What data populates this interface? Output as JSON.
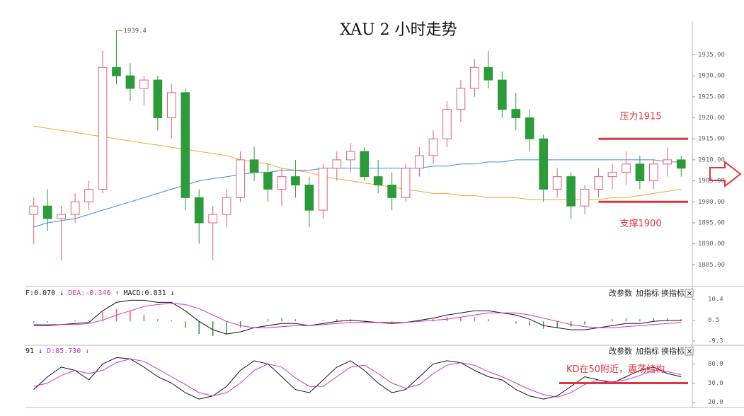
{
  "chart_data": [
    {
      "type": "candlestick",
      "title": "XAU 2 小时走势",
      "open": [
        1897,
        1899,
        1896,
        1897,
        1900,
        1903,
        1932,
        1930,
        1927,
        1929,
        1920,
        1926,
        1901,
        1895,
        1897,
        1901,
        1910,
        1907,
        1903,
        1906,
        1904,
        1898,
        1908,
        1910,
        1912,
        1906,
        1904,
        1901,
        1908,
        1911,
        1915,
        1922,
        1927,
        1932,
        1929,
        1922,
        1920,
        1915,
        1903,
        1906,
        1899,
        1903,
        1906,
        1907,
        1909,
        1905,
        1909,
        1910
      ],
      "high": [
        1901,
        1903,
        1899,
        1902,
        1905,
        1936,
        1939.4,
        1933,
        1930,
        1930,
        1928,
        1927,
        1903,
        1899,
        1903,
        1912,
        1913,
        1909,
        1908,
        1910,
        1906,
        1909,
        1912,
        1914,
        1913,
        1910,
        1907,
        1909,
        1913,
        1917,
        1924,
        1929,
        1934,
        1936,
        1931,
        1926,
        1922,
        1916,
        1908,
        1907,
        1904,
        1908,
        1909,
        1912,
        1911,
        1910,
        1913,
        1911
      ],
      "low": [
        1890,
        1893,
        1886,
        1895,
        1898,
        1902,
        1928,
        1924,
        1923,
        1917,
        1915,
        1898,
        1890,
        1886,
        1894,
        1900,
        1905,
        1900,
        1899,
        1901,
        1894,
        1896,
        1905,
        1907,
        1905,
        1902,
        1898,
        1900,
        1906,
        1909,
        1913,
        1919,
        1925,
        1927,
        1920,
        1917,
        1912,
        1900,
        1901,
        1896,
        1897,
        1901,
        1903,
        1904,
        1903,
        1903,
        1906,
        1906
      ],
      "close": [
        1899,
        1896,
        1897,
        1900,
        1903,
        1932,
        1930,
        1927,
        1929,
        1920,
        1926,
        1901,
        1895,
        1897,
        1901,
        1910,
        1907,
        1903,
        1906,
        1904,
        1898,
        1908,
        1910,
        1912,
        1906,
        1904,
        1901,
        1908,
        1911,
        1915,
        1922,
        1927,
        1932,
        1929,
        1922,
        1920,
        1915,
        1903,
        1906,
        1899,
        1903,
        1906,
        1907,
        1909,
        1905,
        1909,
        1910,
        1908
      ],
      "up_color": "#e0607a",
      "down_color": "#2e9a3c",
      "high_label": "1939.4",
      "moving_averages": [
        {
          "color": "#f0a830",
          "values": [
            1918,
            1917.5,
            1917,
            1916.5,
            1916,
            1915.5,
            1915,
            1914.5,
            1914,
            1913.5,
            1913,
            1912.5,
            1912,
            1911.5,
            1911,
            1910,
            1909.5,
            1909,
            1908,
            1907.5,
            1907,
            1906,
            1905.5,
            1905,
            1904.5,
            1904,
            1903.5,
            1903,
            1902.5,
            1902,
            1902,
            1901.5,
            1901.5,
            1901,
            1901,
            1901,
            1900.5,
            1900.5,
            1900.5,
            1900.5,
            1900.5,
            1900.5,
            1901,
            1901,
            1901.5,
            1902,
            1902.5,
            1903
          ]
        },
        {
          "color": "#3a8fd8",
          "values": [
            1894,
            1895,
            1895.5,
            1896,
            1897,
            1898,
            1899,
            1900,
            1901,
            1902,
            1903,
            1904,
            1905,
            1905.5,
            1906,
            1906.5,
            1907,
            1907,
            1907.5,
            1907.5,
            1907.5,
            1908,
            1908,
            1908,
            1908,
            1908,
            1908,
            1908,
            1908,
            1908.5,
            1908.5,
            1909,
            1909,
            1909.5,
            1909.5,
            1910,
            1910,
            1910,
            1910,
            1910,
            1910,
            1910,
            1910,
            1910,
            1910,
            1910,
            1909.5,
            1909.5
          ]
        }
      ],
      "levels": [
        {
          "label": "压力1915",
          "value": 1915,
          "color": "#e0353c"
        },
        {
          "label": "支撑1900",
          "value": 1900,
          "color": "#e0353c"
        }
      ],
      "ylim": [
        1880,
        1943
      ],
      "yticks": [
        {
          "value": 1885,
          "label": "1885.00"
        },
        {
          "value": 1890,
          "label": "1890.00"
        },
        {
          "value": 1895,
          "label": "1895.00"
        },
        {
          "value": 1900,
          "label": "1900.00"
        },
        {
          "value": 1905,
          "label": "1905.00"
        },
        {
          "value": 1910,
          "label": "1910.00"
        },
        {
          "value": 1915,
          "label": "1915.00"
        },
        {
          "value": 1920,
          "label": "1920.00"
        },
        {
          "value": 1925,
          "label": "1925.00"
        },
        {
          "value": 1930,
          "label": "1930.00"
        },
        {
          "value": 1935,
          "label": "1935.00"
        }
      ]
    },
    {
      "type": "macd",
      "header": [
        {
          "text": "F:0.070 ↓",
          "color": "#222"
        },
        {
          "text": "DEA:-0.346 ↑",
          "color": "#d030c8"
        },
        {
          "text": "MACD:0.831 ↓",
          "color": "#222"
        }
      ],
      "toolbar": [
        "改参数",
        "加指标",
        "换指标",
        "×"
      ],
      "series": [
        {
          "color": "#111",
          "values": [
            -2,
            -2,
            -1.5,
            -1,
            -0.5,
            5,
            9,
            10,
            10,
            9,
            9,
            5,
            0,
            -4,
            -6,
            -5,
            -3,
            -2,
            -1,
            -1,
            -2,
            -1,
            0,
            0.5,
            0,
            -0.5,
            -1,
            -0.5,
            0.5,
            1.5,
            3,
            4,
            5,
            5,
            4,
            3,
            1,
            -2,
            -3,
            -4,
            -4,
            -3,
            -2,
            -1,
            -1,
            0,
            0.5,
            0.5
          ]
        },
        {
          "color": "#d030c8",
          "values": [
            -1.5,
            -1.5,
            -1.5,
            -1.5,
            -1,
            0.5,
            3,
            5,
            7,
            8,
            8.5,
            8,
            6,
            3,
            0,
            -2,
            -3,
            -3,
            -2.5,
            -2,
            -2,
            -1.5,
            -1,
            -0.5,
            -0.5,
            -0.5,
            -0.5,
            -0.5,
            0,
            0.5,
            1,
            2,
            3,
            4,
            4,
            4,
            3,
            1.5,
            0,
            -1.5,
            -2.5,
            -3,
            -3,
            -2.5,
            -2,
            -1.5,
            -1,
            -0.5
          ]
        }
      ],
      "histogram": [
        -0.5,
        -0.5,
        0,
        0.5,
        0.5,
        4.5,
        6,
        5,
        3,
        1,
        0.5,
        -3,
        -6,
        -7,
        -6,
        -3,
        0,
        1,
        1.5,
        1,
        0,
        0.5,
        1,
        1,
        0.5,
        0,
        -0.5,
        0,
        0.5,
        1,
        2,
        2,
        2,
        1,
        0,
        -1,
        -2,
        -3.5,
        -3,
        -2.5,
        -1.5,
        0,
        1,
        1.5,
        1,
        1.5,
        1.5,
        1
      ],
      "up_color": "#e0607a",
      "down_color": "#2e9a3c",
      "ylim": [
        -11,
        15.5
      ],
      "yticks": [
        10.4,
        0.5,
        -9.3
      ]
    },
    {
      "type": "kd",
      "header": [
        {
          "text": "91 ↓",
          "color": "#222"
        },
        {
          "text": "D:85.730 ↓",
          "color": "#d030c8"
        }
      ],
      "toolbar": [
        "改参数",
        "加指标",
        "换指标",
        "×"
      ],
      "series": [
        {
          "color": "#111",
          "values": [
            40,
            60,
            75,
            70,
            55,
            80,
            90,
            88,
            75,
            60,
            50,
            35,
            25,
            30,
            45,
            70,
            85,
            80,
            60,
            40,
            35,
            55,
            75,
            85,
            70,
            50,
            35,
            40,
            60,
            80,
            85,
            82,
            70,
            60,
            55,
            40,
            30,
            25,
            30,
            45,
            60,
            55,
            50,
            60,
            70,
            75,
            65,
            60
          ]
        },
        {
          "color": "#d030c8",
          "values": [
            45,
            50,
            62,
            70,
            65,
            70,
            82,
            88,
            84,
            72,
            60,
            48,
            35,
            30,
            35,
            50,
            70,
            80,
            75,
            58,
            45,
            45,
            60,
            75,
            78,
            65,
            50,
            42,
            48,
            65,
            78,
            82,
            78,
            68,
            60,
            50,
            40,
            32,
            28,
            35,
            48,
            55,
            52,
            55,
            62,
            70,
            68,
            63
          ]
        }
      ],
      "levels": [
        {
          "label": "KD在50附近，震荡结构",
          "value": 50,
          "color": "#e0353c"
        }
      ],
      "ylim": [
        13,
        107
      ],
      "yticks": [
        {
          "value": 80,
          "label": "80.0"
        },
        {
          "value": 50,
          "label": "50.0"
        },
        {
          "value": 20,
          "label": "20.0"
        }
      ]
    }
  ]
}
